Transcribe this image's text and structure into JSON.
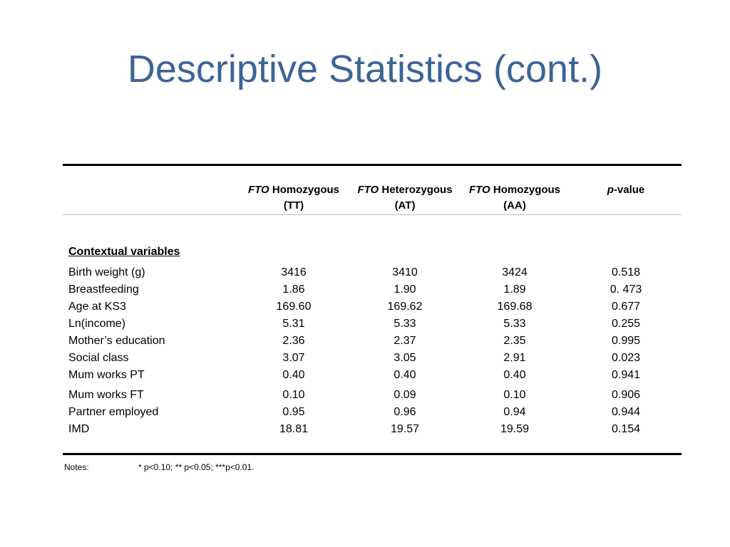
{
  "title": "Descriptive Statistics (cont.)",
  "table": {
    "headers": [
      {
        "gene": "FTO",
        "line1": " Homozygous",
        "line2": "(TT)"
      },
      {
        "gene": "FTO",
        "line1": " Heterozygous",
        "line2": "(AT)"
      },
      {
        "gene": "FTO",
        "line1": " Homozygous",
        "line2": "(AA)"
      },
      {
        "gene": "p",
        "line1": "-value",
        "line2": ""
      }
    ],
    "section_label": "Contextual variables",
    "rows": [
      {
        "label": "Birth weight (g)",
        "values": [
          "3416",
          "3410",
          "3424",
          "0.518"
        ]
      },
      {
        "label": "Breastfeeding",
        "values": [
          "1.86",
          "1.90",
          "1.89",
          "0. 473"
        ]
      },
      {
        "label": "Age at KS3",
        "values": [
          "169.60",
          "169.62",
          "169.68",
          "0.677"
        ]
      },
      {
        "label": "Ln(income)",
        "values": [
          "5.31",
          "5.33",
          "5.33",
          "0.255"
        ]
      },
      {
        "label": "Mother’s education",
        "values": [
          "2.36",
          "2.37",
          "2.35",
          "0.995"
        ]
      },
      {
        "label": "Social class",
        "values": [
          "3.07",
          "3.05",
          "2.91",
          "0.023"
        ]
      },
      {
        "label": "Mum works PT",
        "values": [
          "0.40",
          "0.40",
          "0.40",
          "0.941"
        ]
      },
      {
        "label": "Mum works FT",
        "values": [
          "0.10",
          "0.09",
          "0.10",
          "0.906"
        ]
      },
      {
        "label": "Partner employed",
        "values": [
          "0.95",
          "0.96",
          "0.94",
          "0.944"
        ]
      },
      {
        "label": "IMD",
        "values": [
          "18.81",
          "19.57",
          "19.59",
          "0.154"
        ]
      }
    ]
  },
  "notes": {
    "label": "Notes:",
    "text": "* p<0.10; ** p<0.05; ***p<0.01."
  },
  "colors": {
    "title": "#3c6497"
  }
}
